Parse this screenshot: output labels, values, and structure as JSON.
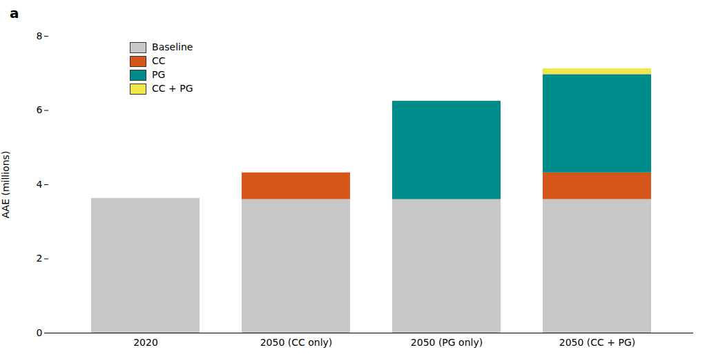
{
  "chart_data": {
    "type": "bar",
    "stacked": true,
    "title": "a",
    "categories": [
      "2020",
      "2050 (CC only)",
      "2050 (PG only)",
      "2050 (CC + PG)"
    ],
    "series": [
      {
        "name": "Baseline",
        "color": "#c8c8c8",
        "values": [
          3.63,
          3.6,
          3.6,
          3.6
        ]
      },
      {
        "name": "CC",
        "color": "#d4561a",
        "values": [
          0.0,
          0.72,
          0.0,
          0.72
        ]
      },
      {
        "name": "PG",
        "color": "#008b8b",
        "values": [
          0.0,
          0.0,
          2.65,
          2.65
        ]
      },
      {
        "name": "CC + PG",
        "color": "#f0e84a",
        "values": [
          0.0,
          0.0,
          0.0,
          0.155
        ]
      }
    ],
    "ylabel": "AAE (millions)",
    "ylim": [
      0,
      8
    ],
    "yticks": [
      0,
      2,
      4,
      6,
      8
    ],
    "grid": false,
    "legend": "upper left"
  }
}
